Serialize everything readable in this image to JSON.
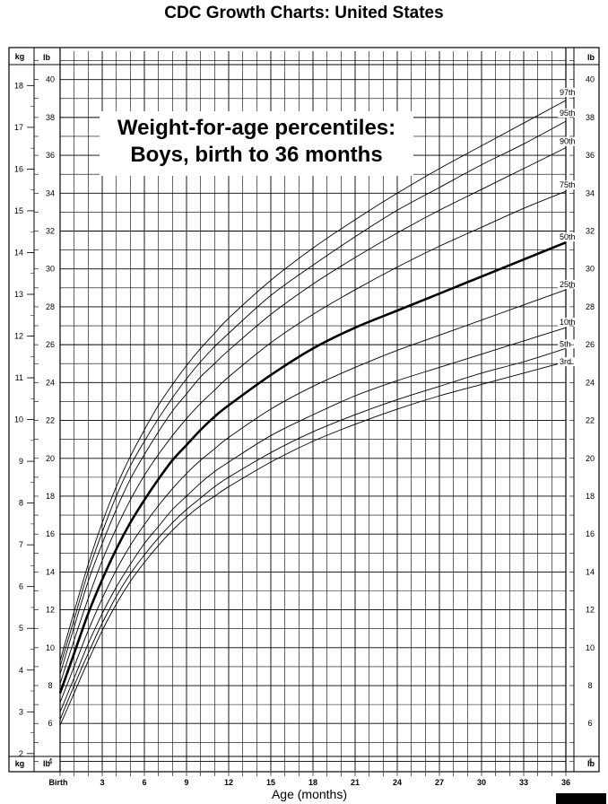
{
  "header": {
    "title": "CDC Growth Charts: United States"
  },
  "chart_data": {
    "type": "line",
    "title": "Weight-for-age percentiles:\nBoys, birth to 36 months",
    "title_lines": [
      "Weight-for-age percentiles:",
      "Boys, birth to 36 months"
    ],
    "xlabel": "Age (months)",
    "ylabel_left": "kg",
    "ylabel_right": "lb",
    "xlim": [
      0,
      36
    ],
    "ylim_lb": [
      3.5,
      41.5
    ],
    "x_ticks": [
      {
        "value": 0,
        "label": "Birth"
      },
      {
        "value": 3,
        "label": "3"
      },
      {
        "value": 6,
        "label": "6"
      },
      {
        "value": 9,
        "label": "9"
      },
      {
        "value": 12,
        "label": "12"
      },
      {
        "value": 15,
        "label": "15"
      },
      {
        "value": 18,
        "label": "18"
      },
      {
        "value": 21,
        "label": "21"
      },
      {
        "value": 24,
        "label": "24"
      },
      {
        "value": 27,
        "label": "27"
      },
      {
        "value": 30,
        "label": "30"
      },
      {
        "value": 33,
        "label": "33"
      },
      {
        "value": 36,
        "label": "36"
      }
    ],
    "kg_ticks": [
      "2",
      "3",
      "4",
      "5",
      "6",
      "7",
      "8",
      "9",
      "10",
      "11",
      "12",
      "13",
      "14",
      "15",
      "16",
      "17",
      "18"
    ],
    "lb_ticks": [
      "4",
      "6",
      "8",
      "10",
      "12",
      "14",
      "16",
      "18",
      "20",
      "22",
      "24",
      "26",
      "28",
      "30",
      "32",
      "34",
      "36",
      "38",
      "40"
    ],
    "lb_ticks_right": [
      "4",
      "6",
      "8",
      "10",
      "12",
      "14",
      "16",
      "18",
      "20",
      "22",
      "24",
      "26",
      "28",
      "30",
      "32",
      "34",
      "36",
      "38",
      "40"
    ],
    "grid": true,
    "x": [
      0,
      1,
      2,
      3,
      4,
      5,
      6,
      7,
      8,
      9,
      10,
      11,
      12,
      15,
      18,
      21,
      24,
      27,
      30,
      33,
      36
    ],
    "series": [
      {
        "name": "97th",
        "values": [
          9.3,
          11.9,
          14.4,
          16.6,
          18.5,
          20.1,
          21.5,
          22.8,
          23.9,
          24.9,
          25.8,
          26.6,
          27.4,
          29.4,
          31.1,
          32.6,
          34.0,
          35.3,
          36.5,
          37.7,
          38.9
        ]
      },
      {
        "name": "95th",
        "values": [
          9.0,
          11.5,
          14.0,
          16.1,
          18.0,
          19.6,
          20.9,
          22.1,
          23.2,
          24.2,
          25.1,
          25.9,
          26.6,
          28.6,
          30.2,
          31.7,
          33.1,
          34.3,
          35.5,
          36.6,
          37.8
        ]
      },
      {
        "name": "90th",
        "values": [
          8.6,
          11.1,
          13.5,
          15.5,
          17.3,
          18.9,
          20.2,
          21.4,
          22.5,
          23.4,
          24.3,
          25.0,
          25.7,
          27.6,
          29.2,
          30.6,
          31.9,
          33.1,
          34.2,
          35.3,
          36.4
        ]
      },
      {
        "name": "75th",
        "values": [
          8.1,
          10.4,
          12.6,
          14.6,
          16.3,
          17.8,
          19.1,
          20.2,
          21.2,
          22.1,
          22.9,
          23.6,
          24.3,
          26.1,
          27.6,
          28.9,
          30.1,
          31.2,
          32.2,
          33.2,
          34.1
        ]
      },
      {
        "name": "50th",
        "values": [
          7.6,
          9.7,
          11.8,
          13.6,
          15.2,
          16.6,
          17.8,
          18.9,
          19.9,
          20.7,
          21.5,
          22.2,
          22.8,
          24.4,
          25.8,
          26.9,
          27.8,
          28.7,
          29.6,
          30.5,
          31.4
        ]
      },
      {
        "name": "25th",
        "values": [
          7.1,
          9.0,
          10.9,
          12.6,
          14.1,
          15.4,
          16.5,
          17.5,
          18.4,
          19.2,
          19.9,
          20.5,
          21.1,
          22.6,
          23.8,
          24.8,
          25.7,
          26.5,
          27.3,
          28.1,
          28.9
        ]
      },
      {
        "name": "10th",
        "values": [
          6.6,
          8.4,
          10.2,
          11.8,
          13.2,
          14.4,
          15.5,
          16.4,
          17.3,
          18.0,
          18.7,
          19.3,
          19.8,
          21.2,
          22.3,
          23.3,
          24.1,
          24.8,
          25.5,
          26.2,
          26.9
        ]
      },
      {
        "name": "5th",
        "values": [
          6.2,
          8.0,
          9.7,
          11.3,
          12.7,
          13.9,
          14.9,
          15.8,
          16.6,
          17.3,
          17.9,
          18.5,
          19.0,
          20.3,
          21.4,
          22.3,
          23.1,
          23.8,
          24.5,
          25.1,
          25.8
        ]
      },
      {
        "name": "3rd",
        "values": [
          5.9,
          7.6,
          9.3,
          10.9,
          12.3,
          13.5,
          14.5,
          15.4,
          16.2,
          16.9,
          17.5,
          18.0,
          18.5,
          19.8,
          20.9,
          21.8,
          22.6,
          23.3,
          23.9,
          24.5,
          25.1
        ]
      }
    ],
    "legend": "curve labels at right end"
  },
  "colors": {
    "ink": "#000000",
    "background": "#ffffff"
  },
  "logo_icon": "cdc-logo-icon"
}
